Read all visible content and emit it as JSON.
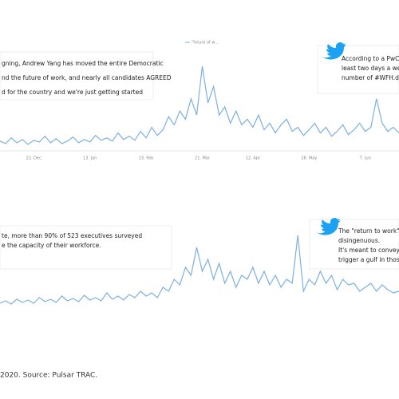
{
  "chart_data": [
    {
      "type": "line",
      "categories": [
        null,
        null,
        null,
        null,
        null,
        null,
        "22. Dec",
        null,
        null,
        null,
        null,
        null,
        null,
        null,
        null,
        null,
        "13. Jan",
        null,
        null,
        null,
        null,
        null,
        null,
        null,
        null,
        null,
        "15. Feb",
        null,
        null,
        null,
        null,
        null,
        null,
        null,
        null,
        null,
        "21. Mar",
        null,
        null,
        null,
        null,
        null,
        null,
        null,
        null,
        "12. Apr",
        null,
        null,
        null,
        null,
        null,
        null,
        null,
        null,
        null,
        "18. May",
        null,
        null,
        null,
        null,
        null,
        null,
        null,
        null,
        null,
        "7. Jun",
        null,
        null,
        null,
        null,
        null,
        null
      ],
      "series": [
        {
          "name": "\"future of w...",
          "color": "#7cb0e0",
          "values": [
            8,
            5,
            12,
            6,
            10,
            4,
            9,
            7,
            14,
            6,
            11,
            5,
            8,
            13,
            6,
            10,
            7,
            15,
            9,
            12,
            8,
            18,
            10,
            14,
            9,
            20,
            12,
            25,
            15,
            22,
            38,
            28,
            45,
            35,
            60,
            40,
            100,
            55,
            75,
            40,
            50,
            30,
            45,
            28,
            35,
            25,
            40,
            22,
            30,
            18,
            28,
            35,
            20,
            25,
            15,
            22,
            30,
            18,
            25,
            14,
            20,
            28,
            16,
            22,
            30,
            20,
            25,
            60,
            30,
            20,
            25,
            18
          ]
        }
      ],
      "annotations": [
        [
          "gning, Andrew Yang has moved the entire Democratic",
          "nd the future of work, and nearly all candidates AGREED",
          "d for the country and we're just getting started"
        ],
        [
          "According to a PwC",
          "least two days a we",
          "number of #WFH.d"
        ]
      ]
    },
    {
      "type": "line",
      "series": [
        {
          "color": "#7cb0e0",
          "values": [
            5,
            8,
            4,
            10,
            6,
            9,
            5,
            12,
            7,
            10,
            6,
            14,
            8,
            11,
            7,
            15,
            9,
            12,
            8,
            18,
            10,
            14,
            9,
            16,
            12,
            20,
            14,
            18,
            12,
            25,
            20,
            35,
            28,
            50,
            40,
            75,
            45,
            60,
            35,
            55,
            30,
            45,
            25,
            40,
            35,
            50,
            30,
            45,
            28,
            40,
            25,
            35,
            30,
            90,
            20,
            35,
            28,
            45,
            30,
            40,
            22,
            35,
            28,
            30,
            20,
            25,
            30,
            20,
            28,
            22,
            18,
            20
          ]
        }
      ],
      "annotations": [
        [
          "te, more than 90% of 523 executives surveyed",
          "e the capacity of their workforce."
        ],
        [
          "The \"return to work\"",
          "disingenuous.",
          "It's meant to convey",
          "trigger a gulf in those"
        ]
      ]
    }
  ],
  "footer": "2020. Source: Pulsar TRAC."
}
